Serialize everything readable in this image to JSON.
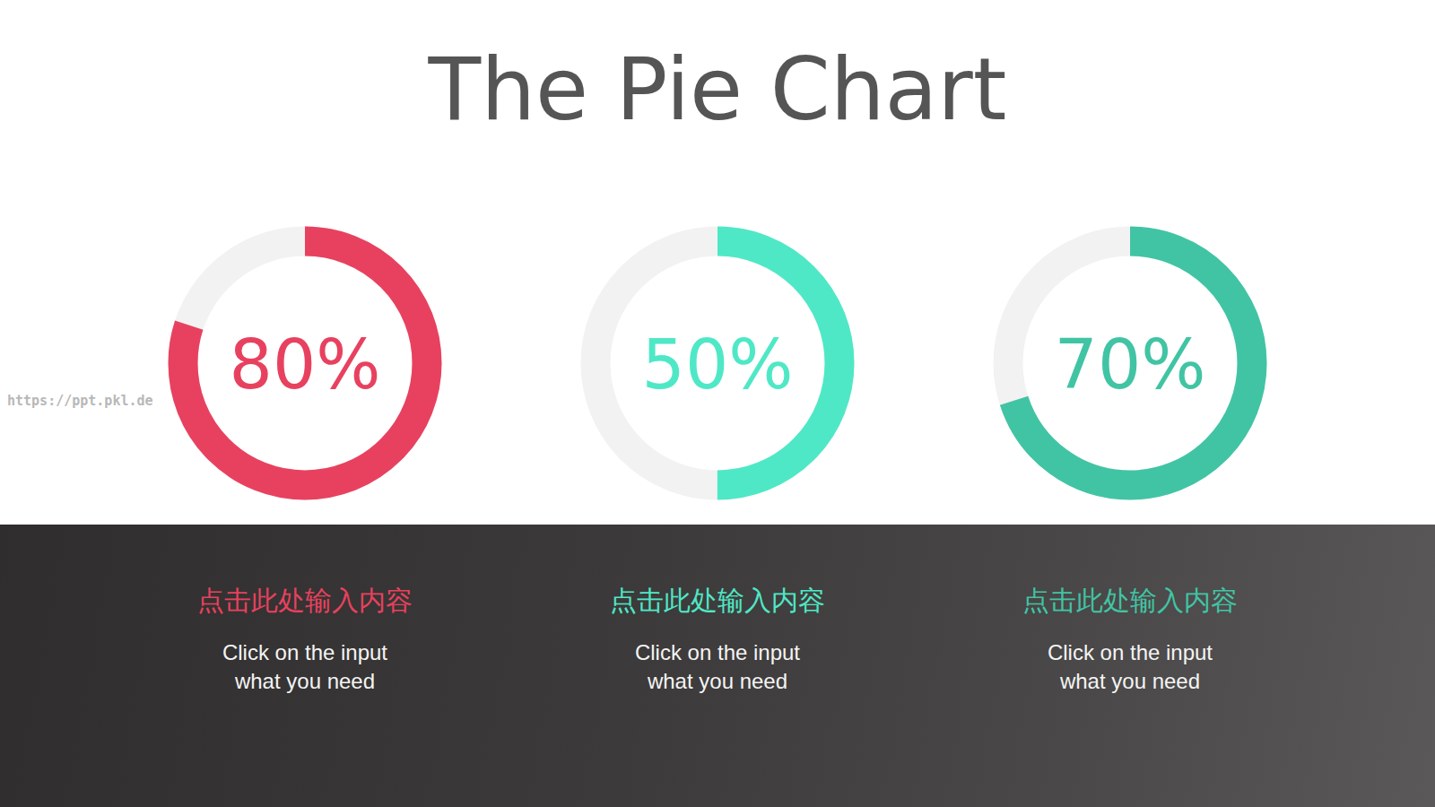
{
  "page": {
    "title": "The Pie Chart",
    "watermark": "https://ppt.pkl.de"
  },
  "chart_data": [
    {
      "type": "pie",
      "values": [
        80
      ],
      "value_labels": [
        "80%"
      ],
      "ylim": [
        0,
        100
      ],
      "color": "#e8415f",
      "data_labels": true,
      "title": "点击此处输入内容",
      "subtitle": "Click on the input what you need"
    },
    {
      "type": "pie",
      "values": [
        50
      ],
      "value_labels": [
        "50%"
      ],
      "ylim": [
        0,
        100
      ],
      "color": "#4fe8c6",
      "data_labels": true,
      "title": "点击此处输入内容",
      "subtitle": "Click on the input what you need"
    },
    {
      "type": "pie",
      "values": [
        70
      ],
      "value_labels": [
        "70%"
      ],
      "ylim": [
        0,
        100
      ],
      "color": "#41c4a4",
      "data_labels": true,
      "title": "点击此处输入内容",
      "subtitle": "Click on the input what you need"
    }
  ]
}
